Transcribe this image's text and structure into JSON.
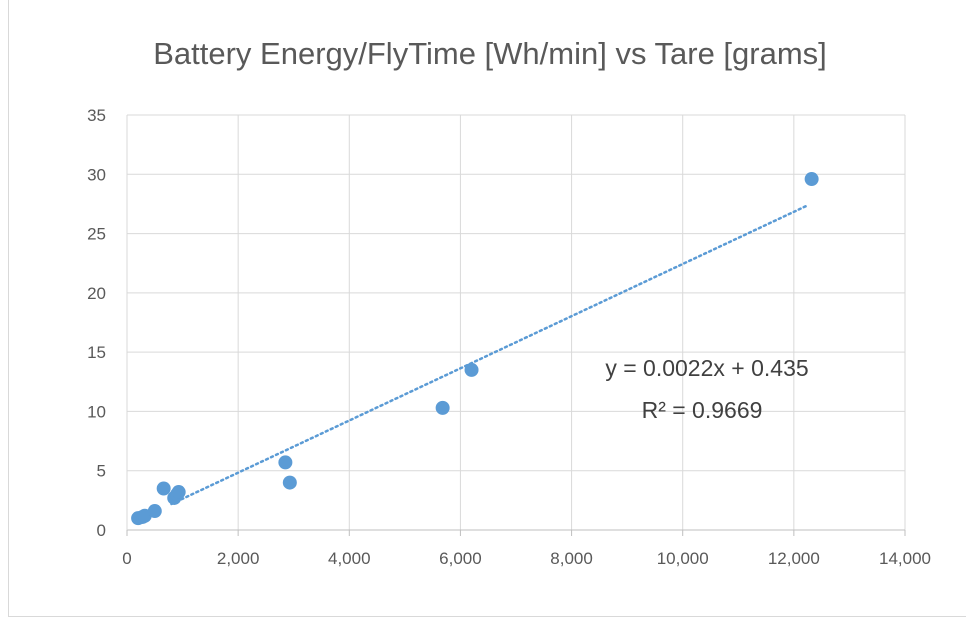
{
  "chart_data": {
    "type": "scatter",
    "title": "Battery Energy/FlyTime [Wh/min] vs Tare [grams]",
    "xlabel": "",
    "ylabel": "",
    "xlim": [
      0,
      14000
    ],
    "ylim": [
      0,
      35
    ],
    "x_ticks": [
      0,
      2000,
      4000,
      6000,
      8000,
      10000,
      12000,
      14000
    ],
    "x_tick_labels": [
      "0",
      "2,000",
      "4,000",
      "6,000",
      "8,000",
      "10,000",
      "12,000",
      "14,000"
    ],
    "y_ticks": [
      0,
      5,
      10,
      15,
      20,
      25,
      30,
      35
    ],
    "y_tick_labels": [
      "0",
      "5",
      "10",
      "15",
      "20",
      "25",
      "30",
      "35"
    ],
    "grid": true,
    "legend": "none",
    "series": [
      {
        "color": "#5b9bd5",
        "points": [
          {
            "x": 200,
            "y": 1.0
          },
          {
            "x": 280,
            "y": 1.1
          },
          {
            "x": 320,
            "y": 1.2
          },
          {
            "x": 500,
            "y": 1.6
          },
          {
            "x": 660,
            "y": 3.5
          },
          {
            "x": 850,
            "y": 2.7
          },
          {
            "x": 900,
            "y": 3.0
          },
          {
            "x": 930,
            "y": 3.2
          },
          {
            "x": 2850,
            "y": 5.7
          },
          {
            "x": 2930,
            "y": 4.0
          },
          {
            "x": 5680,
            "y": 10.3
          },
          {
            "x": 6200,
            "y": 13.5
          },
          {
            "x": 12320,
            "y": 29.6
          }
        ]
      }
    ],
    "trendline": {
      "type": "linear",
      "slope": 0.0022,
      "intercept": 0.435,
      "x_range": [
        800,
        12250
      ],
      "style": "dotted",
      "color": "#5b9bd5",
      "equation_label": "y = 0.0022x + 0.435",
      "r2_label": "R² = 0.9669"
    }
  }
}
